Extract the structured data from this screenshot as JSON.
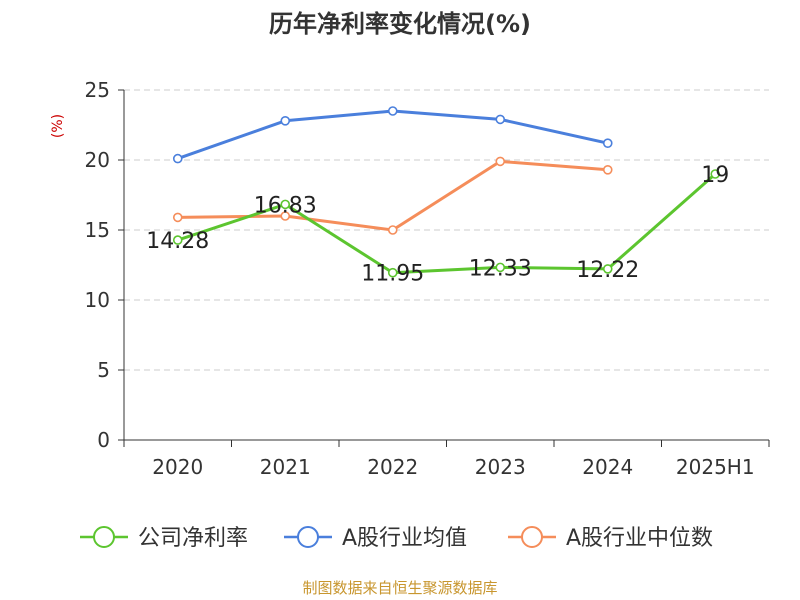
{
  "chart_data": {
    "type": "line",
    "title": "历年净利率变化情况(%)",
    "ylabel": "(%)",
    "categories": [
      "2020",
      "2021",
      "2022",
      "2023",
      "2024",
      "2025H1"
    ],
    "ylim": [
      0,
      25
    ],
    "yticks": [
      0,
      5,
      10,
      15,
      20,
      25
    ],
    "grid": true,
    "legend_position": "bottom",
    "series": [
      {
        "name": "公司净利率",
        "color": "#5cc52f",
        "values": [
          14.28,
          16.83,
          11.95,
          12.33,
          12.22,
          19
        ],
        "labels": [
          "14.28",
          "16.83",
          "11.95",
          "12.33",
          "12.22",
          "19"
        ]
      },
      {
        "name": "A股行业均值",
        "color": "#4a7fdc",
        "values": [
          20.1,
          22.8,
          23.5,
          22.9,
          21.2,
          null
        ]
      },
      {
        "name": "A股行业中位数",
        "color": "#f58d5a",
        "values": [
          15.9,
          16.0,
          15.0,
          19.9,
          19.3,
          null
        ]
      }
    ]
  },
  "source": "制图数据来自恒生聚源数据库",
  "colors": {
    "title": "#333333",
    "axis": "#333333",
    "grid": "#cccccc",
    "ylabel": "#cc0000",
    "source": "#c8962e"
  }
}
